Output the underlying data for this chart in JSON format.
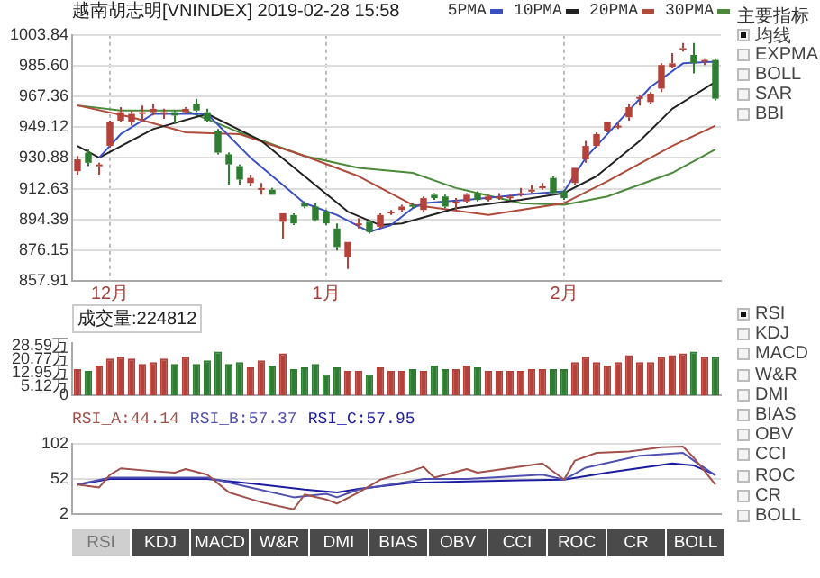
{
  "chart_data": [
    {
      "type": "candlestick",
      "title": "越南胡志明[VNINDEX] 2019-02-28 15:58",
      "categories": [
        null,
        null,
        null,
        "12月",
        null,
        null,
        null,
        null,
        null,
        null,
        null,
        null,
        null,
        null,
        null,
        null,
        null,
        null,
        null,
        null,
        null,
        null,
        null,
        "1月",
        null,
        null,
        null,
        null,
        null,
        null,
        null,
        null,
        null,
        null,
        null,
        null,
        null,
        null,
        null,
        null,
        null,
        null,
        null,
        null,
        null,
        "2月",
        null,
        null,
        null,
        null,
        null,
        null,
        null,
        null,
        null,
        null,
        null,
        null,
        null,
        null
      ],
      "ohlc": [
        [
          923,
          932,
          921,
          930
        ],
        [
          934,
          936,
          926,
          928
        ],
        [
          926,
          928,
          921,
          927
        ],
        [
          938,
          953,
          937,
          952
        ],
        [
          953,
          961,
          952,
          958
        ],
        [
          952,
          959,
          950,
          957
        ],
        [
          957,
          962,
          952,
          958
        ],
        [
          958,
          963,
          956,
          960
        ],
        [
          957,
          960,
          954,
          958
        ],
        [
          958,
          959,
          951,
          956
        ],
        [
          958,
          961,
          957,
          960
        ],
        [
          963,
          966,
          958,
          959
        ],
        [
          958,
          960,
          952,
          953
        ],
        [
          947,
          948,
          933,
          934
        ],
        [
          933,
          934,
          915,
          927
        ],
        [
          926,
          927,
          915,
          918
        ],
        [
          916,
          921,
          914,
          919
        ],
        [
          912,
          916,
          909,
          913
        ],
        [
          912,
          913,
          909,
          909
        ],
        [
          893,
          898,
          883,
          898
        ],
        [
          897,
          898,
          891,
          892
        ],
        [
          904,
          905,
          901,
          902
        ],
        [
          902,
          904,
          893,
          894
        ],
        [
          899,
          900,
          891,
          892
        ],
        [
          889,
          892,
          876,
          878
        ],
        [
          872,
          881,
          865,
          881
        ],
        [
          891,
          895,
          889,
          892
        ],
        [
          893,
          894,
          886,
          887
        ],
        [
          890,
          898,
          889,
          897
        ],
        [
          898,
          900,
          897,
          899
        ],
        [
          900,
          903,
          899,
          902
        ],
        [
          903,
          904,
          901,
          902
        ],
        [
          900,
          908,
          899,
          907
        ],
        [
          909,
          910,
          906,
          907
        ],
        [
          908,
          909,
          901,
          902
        ],
        [
          904,
          907,
          900,
          905
        ],
        [
          905,
          910,
          904,
          909
        ],
        [
          910,
          911,
          905,
          906
        ],
        [
          906,
          909,
          905,
          908
        ],
        [
          907,
          910,
          906,
          908
        ],
        [
          907,
          909,
          906,
          908
        ],
        [
          909,
          913,
          908,
          910
        ],
        [
          911,
          915,
          910,
          912
        ],
        [
          913,
          916,
          912,
          914
        ],
        [
          919,
          920,
          909,
          910
        ],
        [
          911,
          912,
          906,
          907
        ],
        [
          916,
          925,
          915,
          925
        ],
        [
          930,
          941,
          928,
          938
        ],
        [
          938,
          946,
          937,
          945
        ],
        [
          947,
          952,
          946,
          952
        ],
        [
          950,
          952,
          948,
          950
        ],
        [
          955,
          963,
          953,
          961
        ],
        [
          966,
          968,
          962,
          967
        ],
        [
          964,
          970,
          963,
          969
        ],
        [
          972,
          987,
          970,
          986
        ],
        [
          985,
          993,
          984,
          987
        ],
        [
          995,
          999,
          994,
          996
        ],
        [
          992,
          999,
          981,
          987
        ],
        [
          988,
          990,
          986,
          989
        ],
        [
          989,
          990,
          965,
          966
        ]
      ],
      "colors": [
        "#b5413b",
        "#2f7d32",
        "#b5413b",
        "#b5413b",
        "#b5413b",
        "#b5413b",
        "#b5413b",
        "#b5413b",
        "#b5413b",
        "#2f7d32",
        "#b5413b",
        "#2f7d32",
        "#2f7d32",
        "#2f7d32",
        "#2f7d32",
        "#2f7d32",
        "#b5413b",
        "#b5413b",
        "#2f7d32",
        "#b5413b",
        "#2f7d32",
        "#2f7d32",
        "#2f7d32",
        "#2f7d32",
        "#2f7d32",
        "#b5413b",
        "#b5413b",
        "#2f7d32",
        "#b5413b",
        "#b5413b",
        "#b5413b",
        "#2f7d32",
        "#b5413b",
        "#2f7d32",
        "#2f7d32",
        "#b5413b",
        "#b5413b",
        "#2f7d32",
        "#b5413b",
        "#b5413b",
        "#b5413b",
        "#b5413b",
        "#b5413b",
        "#b5413b",
        "#2f7d32",
        "#2f7d32",
        "#b5413b",
        "#b5413b",
        "#b5413b",
        "#b5413b",
        "#b5413b",
        "#b5413b",
        "#b5413b",
        "#b5413b",
        "#b5413b",
        "#b5413b",
        "#b5413b",
        "#2f7d32",
        "#b5413b",
        "#2f7d32"
      ],
      "series": [
        {
          "name": "5PMA",
          "type": "line",
          "color": "#3a4fc0",
          "values": [
            null,
            null,
            931,
            null,
            945,
            null,
            null,
            957,
            null,
            null,
            null,
            null,
            957,
            null,
            null,
            null,
            931,
            null,
            null,
            null,
            null,
            904,
            null,
            null,
            897,
            null,
            null,
            887,
            null,
            891,
            null,
            901,
            904,
            null,
            null,
            null,
            906,
            null,
            null,
            null,
            null,
            909,
            null,
            null,
            null,
            911,
            null,
            931,
            null,
            null,
            952,
            null,
            null,
            973,
            null,
            null,
            987,
            null,
            null,
            988
          ]
        },
        {
          "name": "10PMA",
          "type": "line",
          "color": "#222222",
          "values": [
            938,
            null,
            931,
            null,
            null,
            null,
            null,
            948,
            null,
            null,
            null,
            null,
            957,
            null,
            null,
            null,
            null,
            941,
            null,
            null,
            null,
            920,
            null,
            null,
            null,
            899,
            null,
            null,
            891,
            null,
            892,
            null,
            null,
            null,
            null,
            901,
            null,
            null,
            null,
            null,
            null,
            906,
            null,
            null,
            null,
            910,
            null,
            null,
            920,
            null,
            null,
            null,
            941,
            null,
            null,
            960,
            null,
            null,
            null,
            976
          ]
        },
        {
          "name": "20PMA",
          "type": "line",
          "color": "#b04a3a",
          "values": [
            962,
            null,
            null,
            null,
            null,
            955,
            null,
            null,
            null,
            null,
            946,
            null,
            null,
            null,
            null,
            945,
            null,
            null,
            null,
            null,
            null,
            932,
            null,
            null,
            null,
            null,
            920,
            null,
            null,
            null,
            null,
            903,
            null,
            null,
            null,
            null,
            null,
            null,
            897,
            null,
            null,
            null,
            null,
            null,
            null,
            904,
            null,
            null,
            null,
            917,
            null,
            null,
            null,
            null,
            null,
            938,
            null,
            null,
            null,
            950
          ]
        },
        {
          "name": "30PMA",
          "type": "line",
          "color": "#4a8a3a",
          "values": [
            962,
            null,
            null,
            null,
            959,
            null,
            null,
            null,
            null,
            null,
            959,
            null,
            null,
            null,
            null,
            946,
            null,
            null,
            null,
            null,
            null,
            932,
            null,
            null,
            null,
            null,
            925,
            null,
            null,
            null,
            null,
            922,
            null,
            null,
            null,
            913,
            null,
            null,
            null,
            null,
            null,
            904,
            null,
            null,
            null,
            903,
            null,
            null,
            null,
            908,
            null,
            null,
            null,
            null,
            null,
            922,
            null,
            null,
            null,
            936
          ]
        }
      ],
      "ylim": [
        857.91,
        1003.84
      ],
      "yticks": [
        857.91,
        876.15,
        894.39,
        912.63,
        930.88,
        949.12,
        967.36,
        {
          "value": 985.6,
          "label": "985.60"
        },
        1003.84
      ],
      "grid": true,
      "legend": "top",
      "marker": "none"
    },
    {
      "type": "bar",
      "title": "成交量:224812",
      "categories": [
        null,
        null,
        null,
        null,
        null,
        null,
        null,
        null,
        null,
        null,
        null,
        null,
        null,
        null,
        null,
        null,
        null,
        null,
        null,
        null,
        null,
        null,
        null,
        null,
        null,
        null,
        null,
        null,
        null,
        null,
        null,
        null,
        null,
        null,
        null,
        null,
        null,
        null,
        null,
        null,
        null,
        null,
        null,
        null,
        null,
        null,
        null,
        null,
        null,
        null,
        null,
        null,
        null,
        null,
        null,
        null,
        null,
        null,
        null,
        null
      ],
      "values": [
        15,
        14,
        17,
        21,
        22,
        21,
        18,
        19,
        21,
        18,
        22,
        18,
        20,
        25,
        18,
        19,
        16,
        20,
        17,
        24,
        15,
        16,
        18,
        12,
        16,
        14,
        14,
        12,
        16,
        14,
        14,
        15,
        14,
        17,
        15,
        15,
        17,
        16,
        14,
        14,
        14,
        14,
        15,
        15,
        15,
        15,
        19,
        22,
        19,
        17,
        19,
        23,
        19,
        19,
        22,
        23,
        24,
        25,
        22,
        22
      ],
      "colors": [
        "#b5413b",
        "#2f7d32",
        "#b5413b",
        "#b5413b",
        "#b5413b",
        "#b5413b",
        "#b5413b",
        "#b5413b",
        "#b5413b",
        "#2f7d32",
        "#b5413b",
        "#2f7d32",
        "#2f7d32",
        "#2f7d32",
        "#2f7d32",
        "#2f7d32",
        "#b5413b",
        "#b5413b",
        "#2f7d32",
        "#b5413b",
        "#2f7d32",
        "#2f7d32",
        "#2f7d32",
        "#2f7d32",
        "#2f7d32",
        "#b5413b",
        "#b5413b",
        "#2f7d32",
        "#b5413b",
        "#b5413b",
        "#b5413b",
        "#2f7d32",
        "#b5413b",
        "#2f7d32",
        "#2f7d32",
        "#b5413b",
        "#b5413b",
        "#2f7d32",
        "#b5413b",
        "#b5413b",
        "#b5413b",
        "#b5413b",
        "#b5413b",
        "#b5413b",
        "#2f7d32",
        "#2f7d32",
        "#b5413b",
        "#b5413b",
        "#b5413b",
        "#b5413b",
        "#b5413b",
        "#b5413b",
        "#b5413b",
        "#b5413b",
        "#b5413b",
        "#b5413b",
        "#b5413b",
        "#2f7d32",
        "#b5413b",
        "#2f7d32"
      ],
      "ylim": [
        0,
        30
      ],
      "yticks": [
        0,
        {
          "value": 5.12,
          "label": "5.12万"
        },
        {
          "value": 12.95,
          "label": "12.95万"
        },
        {
          "value": 20.77,
          "label": "20.77万"
        },
        {
          "value": 28.59,
          "label": "28.59万"
        }
      ],
      "tick_labels": "y"
    },
    {
      "type": "line",
      "categories": [
        null,
        null,
        null,
        null,
        null,
        null,
        null,
        null,
        null,
        null,
        null,
        null,
        null,
        null,
        null,
        null,
        null,
        null,
        null,
        null,
        null,
        null,
        null,
        null,
        null,
        null,
        null,
        null,
        null,
        null,
        null,
        null,
        null,
        null,
        null,
        null,
        null,
        null,
        null,
        null,
        null,
        null,
        null,
        null,
        null,
        null,
        null,
        null,
        null,
        null,
        null,
        null,
        null,
        null,
        null,
        null,
        null,
        null,
        null,
        null
      ],
      "series": [
        {
          "name": "RSI_A:44.14",
          "color": "#a0504a",
          "values": [
            44,
            null,
            40,
            58,
            67,
            null,
            null,
            63,
            null,
            61,
            66,
            null,
            58,
            null,
            33,
            null,
            null,
            19,
            null,
            null,
            9,
            30,
            null,
            23,
            17,
            null,
            33,
            null,
            51,
            null,
            null,
            64,
            69,
            54,
            null,
            null,
            66,
            61,
            null,
            null,
            null,
            null,
            null,
            74,
            null,
            51,
            78,
            null,
            89,
            null,
            null,
            91,
            null,
            null,
            97,
            null,
            98,
            82,
            null,
            44
          ]
        },
        {
          "name": "RSI_B:57.37",
          "color": "#5050b0",
          "values": [
            44,
            null,
            null,
            54,
            null,
            null,
            null,
            54,
            null,
            null,
            null,
            null,
            54,
            null,
            null,
            null,
            40,
            null,
            null,
            null,
            26,
            null,
            null,
            31,
            26,
            null,
            37,
            null,
            null,
            null,
            null,
            49,
            52,
            null,
            null,
            null,
            52,
            null,
            null,
            null,
            null,
            null,
            null,
            58,
            null,
            51,
            null,
            68,
            null,
            null,
            null,
            null,
            85,
            null,
            null,
            null,
            89,
            78,
            null,
            57
          ]
        },
        {
          "name": "RSI_C:57.95",
          "color": "#1c1ca0",
          "values": [
            44,
            null,
            null,
            52,
            null,
            null,
            null,
            null,
            null,
            null,
            null,
            null,
            52,
            null,
            null,
            null,
            null,
            44,
            null,
            null,
            null,
            37,
            null,
            null,
            33,
            null,
            38,
            null,
            null,
            null,
            null,
            47,
            47,
            null,
            null,
            null,
            null,
            null,
            null,
            null,
            null,
            50,
            null,
            null,
            null,
            51,
            null,
            null,
            null,
            61,
            null,
            null,
            null,
            null,
            null,
            74,
            null,
            71,
            null,
            58
          ]
        }
      ],
      "ylim": [
        2,
        102
      ],
      "yticks": [
        2,
        52,
        102
      ],
      "tick_labels": "y",
      "grid": "y",
      "legend": "top left",
      "marker": "none"
    },
    {
      "type": "other",
      "title": "主要指标",
      "annotations": [
        "均线",
        "EXPMA",
        "BOLL",
        "SAR",
        "BBI"
      ]
    },
    {
      "type": "other",
      "annotations": [
        "RSI",
        "KDJ",
        "MACD",
        "W&R",
        "DMI",
        "BIAS",
        "OBV",
        "CCI",
        "ROC",
        "CR",
        "BOLL"
      ]
    },
    {
      "type": "other",
      "annotations": [
        "RSI",
        "KDJ",
        "MACD",
        "W&R",
        "DMI",
        "BIAS",
        "OBV",
        "CCI",
        "ROC",
        "CR",
        "BOLL"
      ]
    }
  ]
}
